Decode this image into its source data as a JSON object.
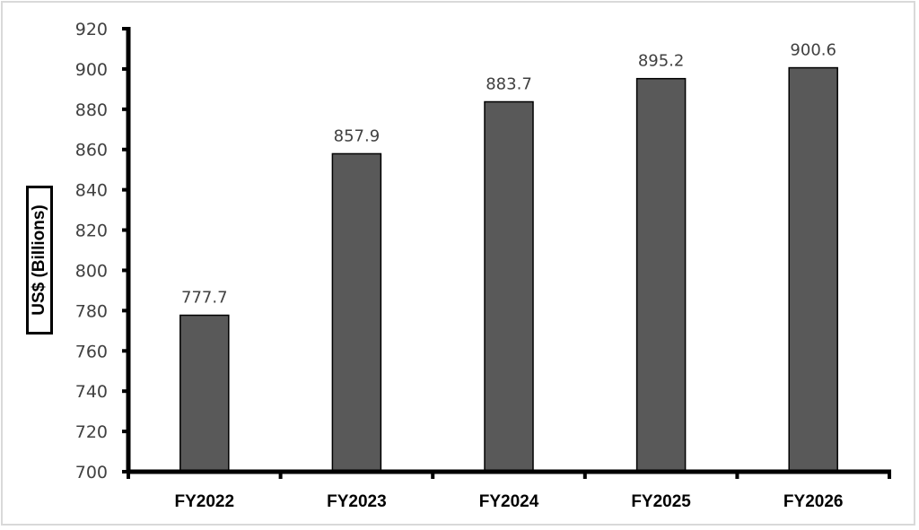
{
  "chart_data": {
    "type": "bar",
    "title": "",
    "xlabel": "",
    "ylabel": "US$ (Billions)",
    "categories": [
      "FY2022",
      "FY2023",
      "FY2024",
      "FY2025",
      "FY2026"
    ],
    "values": [
      777.7,
      857.9,
      883.7,
      895.2,
      900.6
    ],
    "data_labels": [
      "777.7",
      "857.9",
      "883.7",
      "895.2",
      "900.6"
    ],
    "ylim": [
      700,
      920
    ],
    "yticks": [
      700,
      720,
      740,
      760,
      780,
      800,
      820,
      840,
      860,
      880,
      900,
      920
    ],
    "grid": false,
    "legend": null,
    "bar_color": "#595959",
    "bar_edge_color": "#000000"
  }
}
